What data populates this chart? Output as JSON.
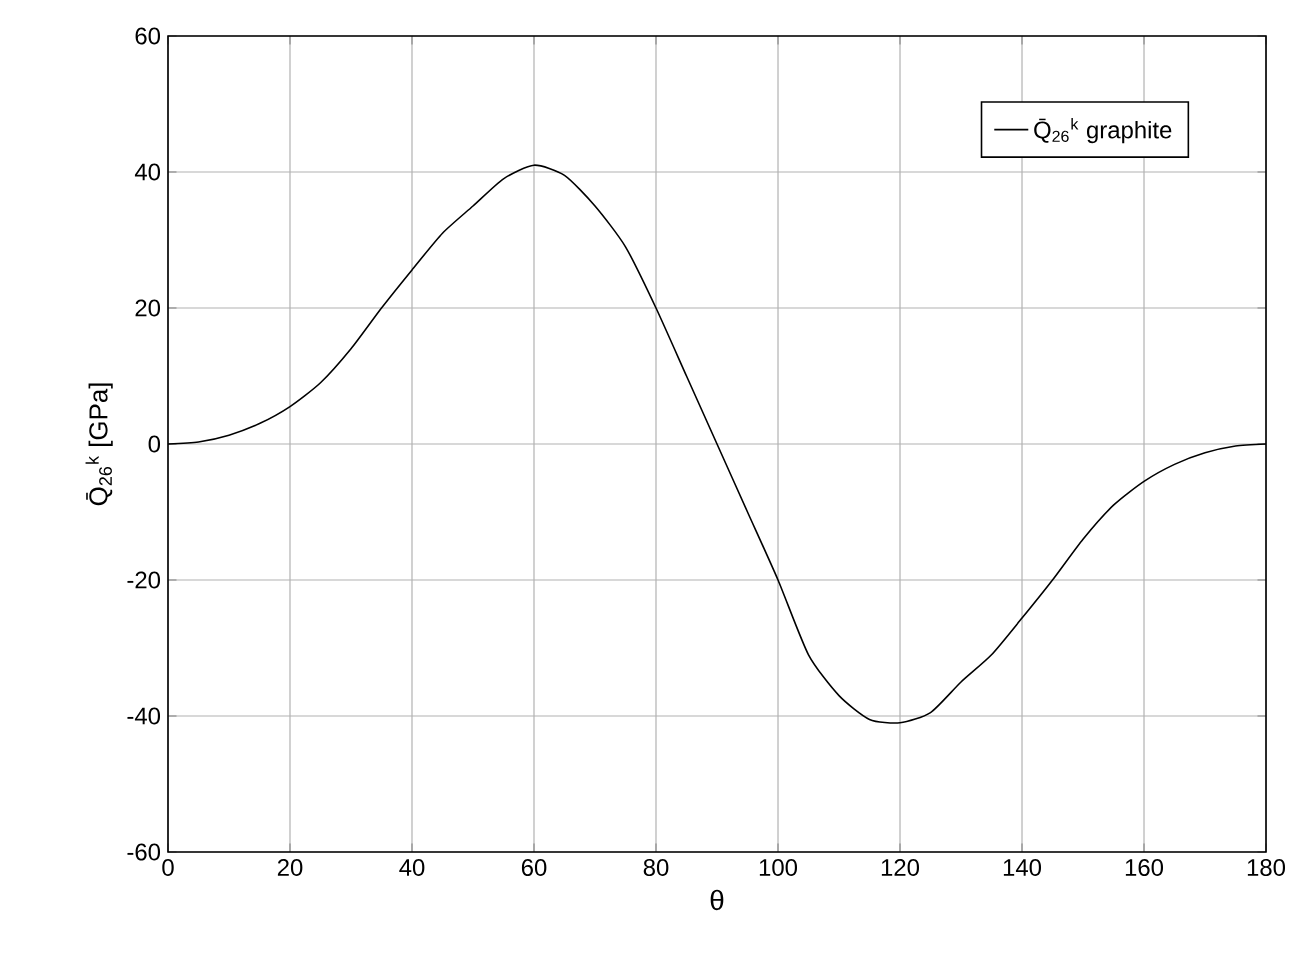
{
  "chart_data": {
    "type": "line",
    "xlabel": "θ",
    "ylabel": "Q̄$_{26}$$^{k}$ [GPa]",
    "xlim": [
      0,
      180
    ],
    "ylim": [
      -60,
      60
    ],
    "xticks": [
      0,
      20,
      40,
      60,
      80,
      100,
      120,
      140,
      160,
      180
    ],
    "yticks": [
      -60,
      -40,
      -20,
      0,
      20,
      40,
      60
    ],
    "grid": true,
    "legend": "top right",
    "marker": "none",
    "line_style": "solid",
    "x": [
      0,
      5,
      10,
      15,
      20,
      25,
      30,
      35,
      40,
      45,
      50,
      55,
      60,
      65,
      70,
      75,
      80,
      85,
      90,
      95,
      100,
      105,
      110,
      115,
      120,
      125,
      130,
      135,
      140,
      145,
      150,
      155,
      160,
      165,
      170,
      175,
      180
    ],
    "series": [
      {
        "name": "Q̄$_{26}$$^{k}$ graphite",
        "color": "#000000",
        "values": [
          0,
          0.3,
          1.3,
          3,
          5.5,
          9,
          14,
          20,
          25.6,
          31,
          35,
          39,
          41,
          39.5,
          35,
          29,
          20,
          10,
          0,
          -10,
          -20,
          -31,
          -37,
          -40.5,
          -41,
          -39.5,
          -35,
          -31,
          -25.6,
          -20,
          -14,
          -9,
          -5.5,
          -3,
          -1.3,
          -0.3,
          0
        ]
      }
    ]
  }
}
